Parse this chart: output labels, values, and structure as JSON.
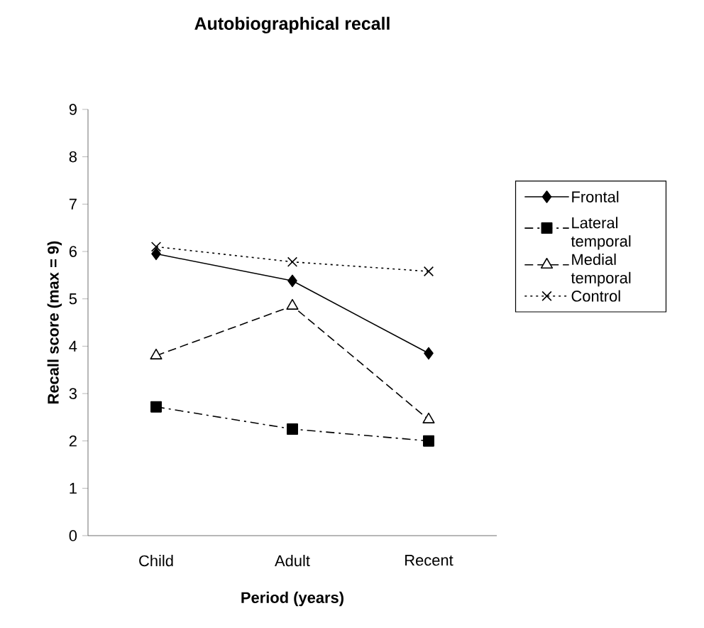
{
  "chart_data": {
    "type": "line",
    "title": "Autobiographical recall",
    "xlabel": "Period (years)",
    "ylabel": "Recall score (max = 9)",
    "categories": [
      "Child",
      "Adult",
      "Recent"
    ],
    "ylim": [
      0,
      9
    ],
    "yticks": [
      0,
      1,
      2,
      3,
      4,
      5,
      6,
      7,
      8,
      9
    ],
    "grid": false,
    "legend": "right",
    "series": [
      {
        "name": "Frontal",
        "color": "#000000",
        "marker": "diamond",
        "line_style": "solid",
        "values": [
          5.95,
          5.38,
          3.85
        ]
      },
      {
        "name": "Lateral temporal",
        "color": "#000000",
        "marker": "square",
        "line_style": "dashdot",
        "values": [
          2.72,
          2.25,
          2.0
        ]
      },
      {
        "name": "Medial temporal",
        "color": "#000000",
        "marker": "triangle",
        "line_style": "dashed",
        "values": [
          3.8,
          4.85,
          2.45
        ]
      },
      {
        "name": "Control",
        "color": "#000000",
        "marker": "cross",
        "line_style": "dotted",
        "values": [
          6.1,
          5.78,
          5.58
        ]
      }
    ]
  }
}
